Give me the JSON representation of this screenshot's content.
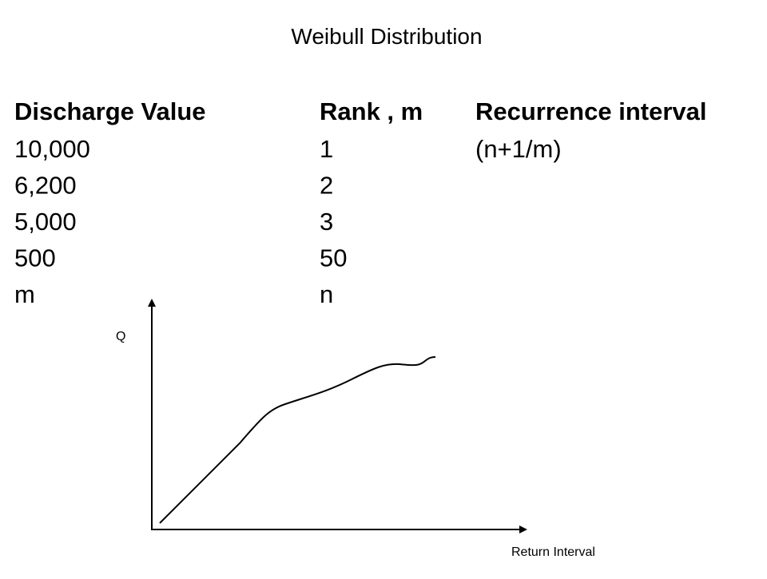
{
  "title": "Weibull Distribution",
  "table": {
    "headers": [
      "Discharge Value",
      "Rank , m",
      "Recurrence interval"
    ],
    "rows": [
      [
        "10,000",
        "1",
        "(n+1/m)"
      ],
      [
        "6,200",
        "2"
      ],
      [
        "5,000",
        "3"
      ],
      [
        "500",
        "50"
      ],
      [
        "m",
        "n"
      ]
    ]
  },
  "sketch": {
    "y_label": "Q",
    "x_label": "Return Interval"
  }
}
